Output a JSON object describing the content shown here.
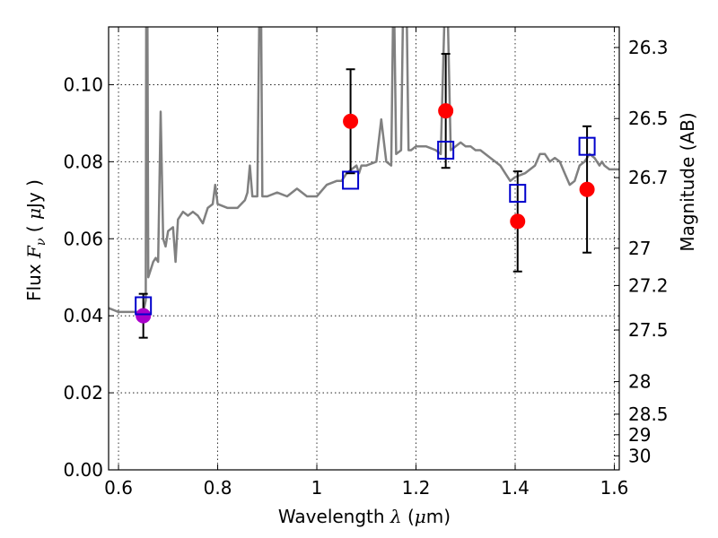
{
  "chart_data": {
    "type": "scatter",
    "xlabel": "Wavelength  λ (μm)",
    "ylabel": "Flux  Fν  ( μJy )",
    "ylabel_right": "Magnitude (AB)",
    "xlim": [
      0.58,
      1.61
    ],
    "ylim": [
      0.0,
      0.115
    ],
    "x_ticks": [
      0.6,
      0.8,
      1.0,
      1.2,
      1.4,
      1.6
    ],
    "x_tick_labels": [
      "0.6",
      "0.8",
      "1",
      "1.2",
      "1.4",
      "1.6"
    ],
    "y_ticks": [
      0.0,
      0.02,
      0.04,
      0.06,
      0.08,
      0.1
    ],
    "y_tick_labels": [
      "0.00",
      "0.02",
      "0.04",
      "0.06",
      "0.08",
      "0.10"
    ],
    "right_ticks": [
      {
        "label": "26.3",
        "value": 26.3
      },
      {
        "label": "26.5",
        "value": 26.5
      },
      {
        "label": "26.7",
        "value": 26.7
      },
      {
        "label": "27",
        "value": 27.0
      },
      {
        "label": "27.2",
        "value": 27.2
      },
      {
        "label": "27.5",
        "value": 27.5
      },
      {
        "label": "28",
        "value": 28.0
      },
      {
        "label": "28.5",
        "value": 28.5
      },
      {
        "label": "29",
        "value": 29.0
      },
      {
        "label": "30",
        "value": 30.0
      }
    ],
    "grid": true,
    "colors": {
      "model": "#808080",
      "observed": "#ff0000",
      "observed_special": "#aa00cc",
      "synthetic": "#0000cc",
      "errorbar": "#000000"
    },
    "series": [
      {
        "style": "line",
        "points": [
          [
            0.58,
            0.042
          ],
          [
            0.6,
            0.041
          ],
          [
            0.62,
            0.041
          ],
          [
            0.64,
            0.041
          ],
          [
            0.65,
            0.041
          ],
          [
            0.655,
            0.044
          ],
          [
            0.656,
            0.13
          ],
          [
            0.658,
            0.13
          ],
          [
            0.66,
            0.05
          ],
          [
            0.665,
            0.052
          ],
          [
            0.67,
            0.054
          ],
          [
            0.675,
            0.055
          ],
          [
            0.68,
            0.054
          ],
          [
            0.685,
            0.093
          ],
          [
            0.69,
            0.06
          ],
          [
            0.695,
            0.058
          ],
          [
            0.7,
            0.062
          ],
          [
            0.71,
            0.063
          ],
          [
            0.715,
            0.054
          ],
          [
            0.72,
            0.065
          ],
          [
            0.73,
            0.067
          ],
          [
            0.74,
            0.066
          ],
          [
            0.75,
            0.067
          ],
          [
            0.76,
            0.066
          ],
          [
            0.77,
            0.064
          ],
          [
            0.775,
            0.066
          ],
          [
            0.78,
            0.068
          ],
          [
            0.79,
            0.069
          ],
          [
            0.795,
            0.074
          ],
          [
            0.8,
            0.069
          ],
          [
            0.82,
            0.068
          ],
          [
            0.84,
            0.068
          ],
          [
            0.855,
            0.07
          ],
          [
            0.86,
            0.072
          ],
          [
            0.865,
            0.079
          ],
          [
            0.87,
            0.071
          ],
          [
            0.88,
            0.071
          ],
          [
            0.885,
            0.13
          ],
          [
            0.887,
            0.13
          ],
          [
            0.89,
            0.071
          ],
          [
            0.9,
            0.071
          ],
          [
            0.92,
            0.072
          ],
          [
            0.94,
            0.071
          ],
          [
            0.96,
            0.073
          ],
          [
            0.98,
            0.071
          ],
          [
            1.0,
            0.071
          ],
          [
            1.02,
            0.074
          ],
          [
            1.04,
            0.075
          ],
          [
            1.05,
            0.075
          ],
          [
            1.06,
            0.077
          ],
          [
            1.07,
            0.078
          ],
          [
            1.08,
            0.079
          ],
          [
            1.085,
            0.077
          ],
          [
            1.09,
            0.079
          ],
          [
            1.1,
            0.079
          ],
          [
            1.12,
            0.08
          ],
          [
            1.13,
            0.091
          ],
          [
            1.14,
            0.08
          ],
          [
            1.15,
            0.079
          ],
          [
            1.155,
            0.13
          ],
          [
            1.16,
            0.082
          ],
          [
            1.17,
            0.083
          ],
          [
            1.175,
            0.13
          ],
          [
            1.18,
            0.13
          ],
          [
            1.185,
            0.083
          ],
          [
            1.19,
            0.083
          ],
          [
            1.2,
            0.084
          ],
          [
            1.22,
            0.084
          ],
          [
            1.24,
            0.083
          ],
          [
            1.25,
            0.082
          ],
          [
            1.26,
            0.13
          ],
          [
            1.262,
            0.13
          ],
          [
            1.27,
            0.083
          ],
          [
            1.28,
            0.084
          ],
          [
            1.29,
            0.085
          ],
          [
            1.3,
            0.084
          ],
          [
            1.31,
            0.084
          ],
          [
            1.32,
            0.083
          ],
          [
            1.33,
            0.083
          ],
          [
            1.35,
            0.081
          ],
          [
            1.37,
            0.079
          ],
          [
            1.38,
            0.077
          ],
          [
            1.39,
            0.075
          ],
          [
            1.4,
            0.076
          ],
          [
            1.42,
            0.077
          ],
          [
            1.44,
            0.079
          ],
          [
            1.45,
            0.082
          ],
          [
            1.46,
            0.082
          ],
          [
            1.47,
            0.08
          ],
          [
            1.48,
            0.081
          ],
          [
            1.49,
            0.08
          ],
          [
            1.5,
            0.077
          ],
          [
            1.51,
            0.074
          ],
          [
            1.52,
            0.075
          ],
          [
            1.53,
            0.079
          ],
          [
            1.54,
            0.08
          ],
          [
            1.55,
            0.082
          ],
          [
            1.56,
            0.081
          ],
          [
            1.57,
            0.079
          ],
          [
            1.575,
            0.08
          ],
          [
            1.58,
            0.079
          ],
          [
            1.59,
            0.078
          ],
          [
            1.6,
            0.078
          ],
          [
            1.61,
            0.078
          ]
        ]
      },
      {
        "style": "errorbar",
        "points": [
          {
            "x": 0.65,
            "y": 0.04,
            "yerr_low": 0.0057,
            "yerr_high": 0.0057
          },
          {
            "x": 1.068,
            "y": 0.0905,
            "yerr_low": 0.0135,
            "yerr_high": 0.0135
          },
          {
            "x": 1.26,
            "y": 0.0932,
            "yerr_low": 0.0148,
            "yerr_high": 0.0148
          },
          {
            "x": 1.405,
            "y": 0.0645,
            "yerr_low": 0.013,
            "yerr_high": 0.013
          },
          {
            "x": 1.545,
            "y": 0.0728,
            "yerr_low": 0.0164,
            "yerr_high": 0.0164
          }
        ]
      },
      {
        "style": "markers",
        "marker": "circle",
        "points": [
          {
            "x": 0.65,
            "y": 0.04,
            "color": "#aa00cc"
          },
          {
            "x": 1.068,
            "y": 0.0905,
            "color": "#ff0000"
          },
          {
            "x": 1.26,
            "y": 0.0932,
            "color": "#ff0000"
          },
          {
            "x": 1.405,
            "y": 0.0645,
            "color": "#ff0000"
          },
          {
            "x": 1.545,
            "y": 0.0728,
            "color": "#ff0000"
          }
        ]
      },
      {
        "style": "markers",
        "marker": "square-open",
        "points": [
          {
            "x": 0.65,
            "y": 0.0426
          },
          {
            "x": 1.068,
            "y": 0.0752
          },
          {
            "x": 1.26,
            "y": 0.083
          },
          {
            "x": 1.405,
            "y": 0.0718
          },
          {
            "x": 1.545,
            "y": 0.084
          }
        ]
      }
    ]
  }
}
